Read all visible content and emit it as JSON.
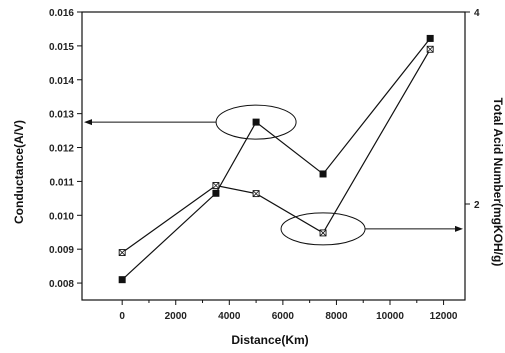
{
  "chart_data": {
    "type": "line",
    "title": "",
    "xlabel": "Distance(Km)",
    "ylabel_left": "Conductance(A/V)",
    "ylabel_right": "Total Acid Number(mgKOH/g)",
    "xlim": [
      -1500,
      12800
    ],
    "ylim_left": [
      0.0075,
      0.016
    ],
    "ylim_right": [
      1.0,
      4.0
    ],
    "x_ticks": [
      0,
      2000,
      4000,
      6000,
      8000,
      10000,
      12000
    ],
    "y_left_ticks": [
      0.008,
      0.009,
      0.01,
      0.011,
      0.012,
      0.013,
      0.014,
      0.015,
      0.016
    ],
    "y_left_tick_labels": [
      "0.008",
      "0.009",
      "0.010",
      "0.011",
      "0.012",
      "0.013",
      "0.014",
      "0.015",
      "0.016"
    ],
    "y_right_ticks": [
      2,
      4
    ],
    "y_right_tick_labels": [
      "2",
      "4"
    ],
    "legend": "none",
    "grid": false,
    "series": [
      {
        "axis": "left",
        "marker": "filled-square",
        "x": [
          0,
          3500,
          5000,
          7500,
          11500
        ],
        "y": [
          0.0081,
          0.01065,
          0.01275,
          0.01122,
          0.01522
        ]
      },
      {
        "axis": "left",
        "marker": "open-square-x",
        "x": [
          0,
          3500,
          5000,
          7500,
          11500
        ],
        "y": [
          0.0089,
          0.01088,
          0.01064,
          0.00948,
          0.0149
        ]
      }
    ],
    "annotations": [
      {
        "type": "ellipse-arrow",
        "target_series": 0,
        "points_to": "left-axis"
      },
      {
        "type": "ellipse-arrow",
        "target_series": 1,
        "points_to": "right-axis"
      }
    ],
    "colors": {
      "line": "#111111",
      "axis": "#111111"
    }
  }
}
